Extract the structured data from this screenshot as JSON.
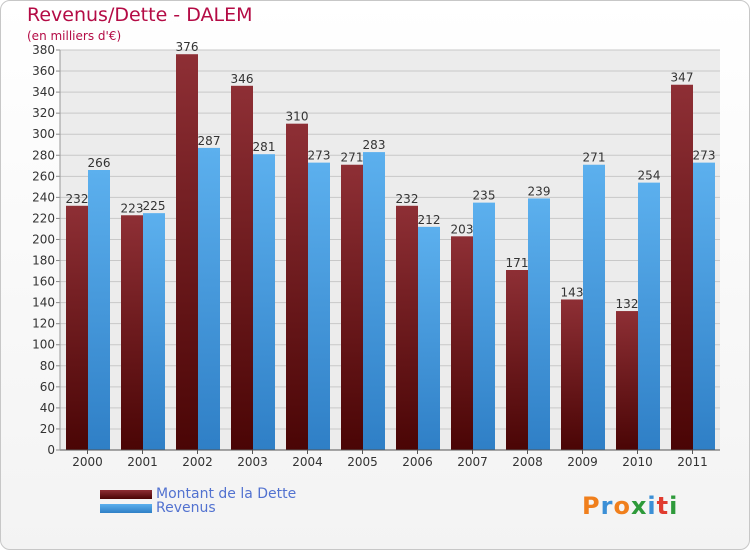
{
  "title": "Revenus/Dette - DALEM",
  "subtitle": "(en milliers d'€)",
  "chart_data": {
    "type": "bar",
    "categories": [
      "2000",
      "2001",
      "2002",
      "2003",
      "2004",
      "2005",
      "2006",
      "2007",
      "2008",
      "2009",
      "2010",
      "2011"
    ],
    "series": [
      {
        "name": "Montant de la Dette",
        "values": [
          232,
          223,
          376,
          346,
          310,
          271,
          232,
          203,
          171,
          143,
          132,
          347
        ],
        "color": "#7a1f25"
      },
      {
        "name": "Revenus",
        "values": [
          266,
          225,
          287,
          281,
          273,
          283,
          212,
          235,
          239,
          271,
          254,
          273
        ],
        "color": "#4ea6e6"
      }
    ],
    "ylim": [
      0,
      380
    ],
    "yticks": [
      0,
      20,
      40,
      60,
      80,
      100,
      120,
      140,
      160,
      180,
      200,
      220,
      240,
      260,
      280,
      300,
      320,
      340,
      360,
      380
    ],
    "grid": true,
    "legend_position": "bottom-left",
    "data_labels": true
  },
  "logo": {
    "letters": [
      {
        "ch": "P",
        "color": "#f07f1c"
      },
      {
        "ch": "r",
        "color": "#3b8fd6"
      },
      {
        "ch": "o",
        "color": "#f07f1c"
      },
      {
        "ch": "x",
        "color": "#2e9a3a"
      },
      {
        "ch": "i",
        "color": "#3b8fd6"
      },
      {
        "ch": "t",
        "color": "#e03b2f"
      },
      {
        "ch": "i",
        "color": "#2e9a3a"
      }
    ]
  }
}
